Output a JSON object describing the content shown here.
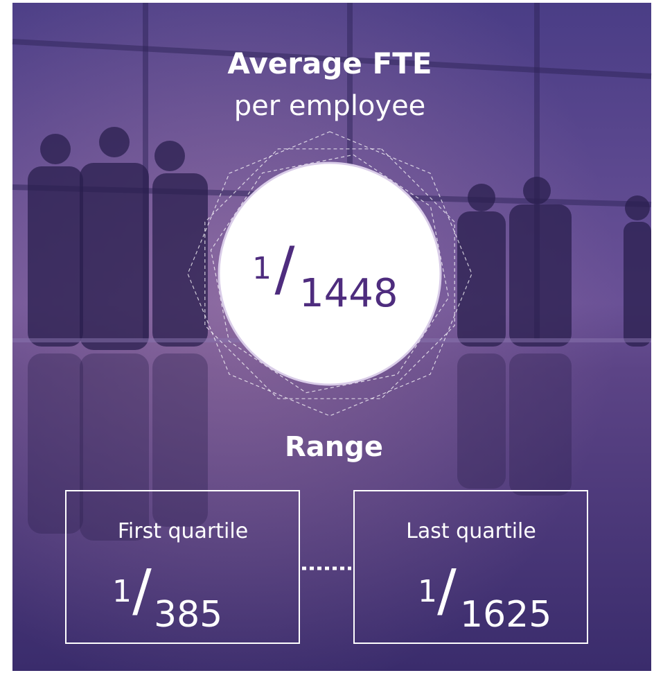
{
  "header": {
    "title": "Average FTE",
    "subtitle": "per employee"
  },
  "average": {
    "numerator": 1,
    "denominator": 1448
  },
  "range": {
    "label": "Range",
    "first": {
      "label": "First quartile",
      "numerator": 1,
      "denominator": 385
    },
    "last": {
      "label": "Last quartile",
      "numerator": 1,
      "denominator": 1625
    }
  }
}
